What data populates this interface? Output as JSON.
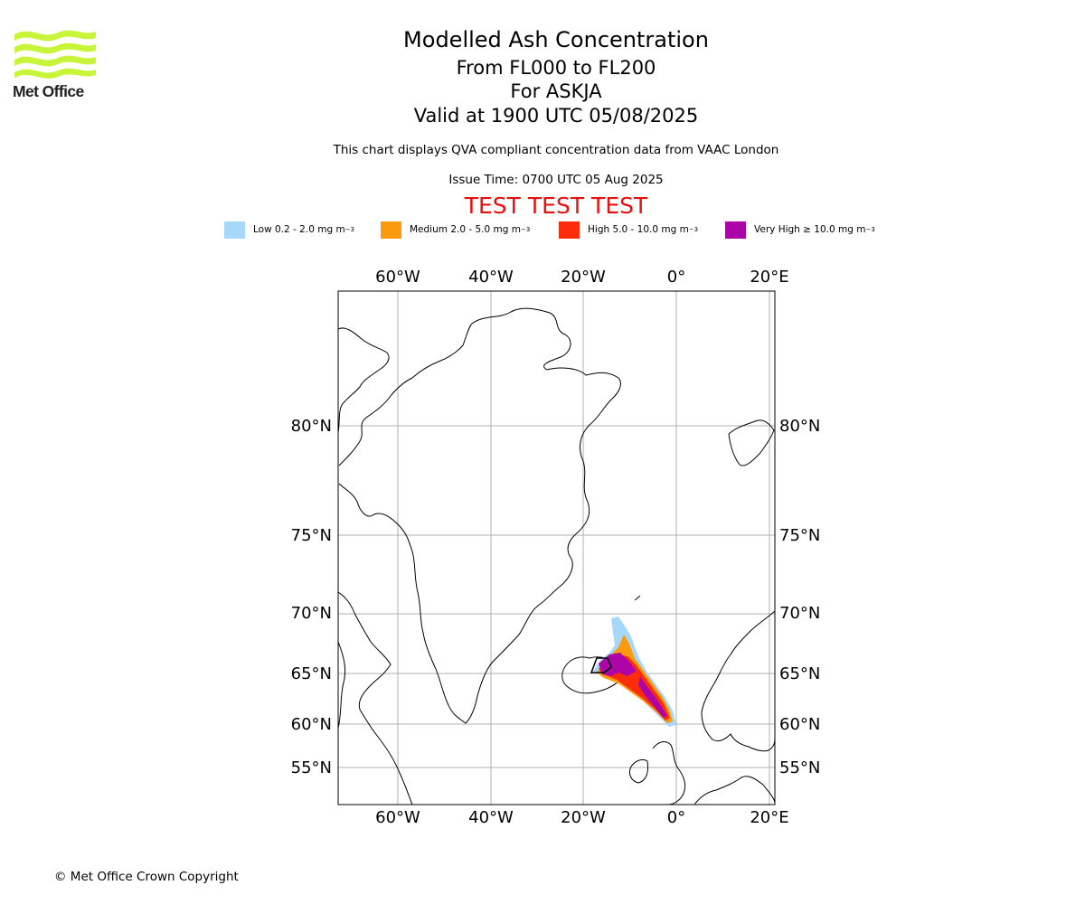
{
  "header": {
    "title": "Modelled Ash Concentration",
    "levels": "From FL000 to FL200",
    "volcano": "For ASKJA",
    "valid": "Valid at 1900 UTC 05/08/2025",
    "note": "This chart displays QVA compliant concentration data from VAAC London",
    "issue": "Issue Time: 0700 UTC 05 Aug 2025",
    "test_banner": "TEST TEST TEST"
  },
  "logo": {
    "text": "Met Office",
    "color": "#c8f53a"
  },
  "legend": [
    {
      "label": "Low 0.2 - 2.0 mg m",
      "sup": "−3",
      "color": "#a6d8fb"
    },
    {
      "label": "Medium 2.0 - 5.0 mg m",
      "sup": "−3",
      "color": "#fb9a0c"
    },
    {
      "label": "High 5.0 - 10.0 mg m",
      "sup": "−3",
      "color": "#fd2c0a"
    },
    {
      "label": "Very High ≥ 10.0 mg m",
      "sup": "−3",
      "color": "#ad04a8"
    }
  ],
  "map": {
    "lon_labels": [
      "60°W",
      "40°W",
      "20°W",
      "0°",
      "20°E"
    ],
    "lat_labels": [
      "80°N",
      "75°N",
      "70°N",
      "65°N",
      "60°N",
      "55°N"
    ]
  },
  "footer": {
    "copyright": "© Met Office Crown Copyright"
  }
}
